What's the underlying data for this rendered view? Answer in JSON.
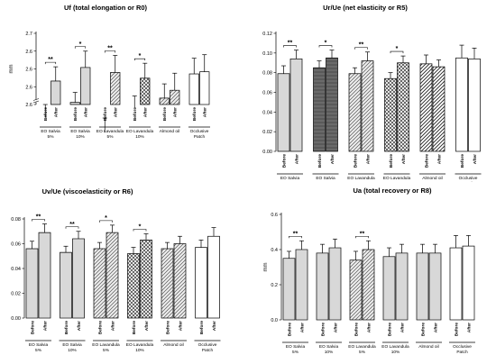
{
  "chart_data": [
    {
      "type": "bar",
      "title": "Uf (total elongation or R0)",
      "ylabel": "mm",
      "ylim": [
        2.6,
        2.7
      ],
      "yticks": [
        "2.6",
        "2.6",
        "2.6",
        "2.6",
        "2.7"
      ],
      "axis_break": true,
      "groups": [
        "EO Salvia\n5%",
        "EO Salvia\n10%",
        "EO Lavandula\n5%",
        "EO Lavandula\n10%",
        "Almond oil",
        "Occlusive\nPatch"
      ],
      "bar_labels": [
        "Before",
        "After"
      ],
      "series": [
        {
          "name": "Before",
          "values": [
            2.582,
            2.603,
            2.561,
            2.596,
            2.609,
            2.643
          ],
          "errors": [
            0.018,
            0.014,
            0.02,
            0.016,
            0.02,
            0.022
          ]
        },
        {
          "name": "After",
          "values": [
            2.633,
            2.652,
            2.645,
            2.637,
            2.62,
            2.646
          ],
          "errors": [
            0.02,
            0.023,
            0.024,
            0.021,
            0.024,
            0.024
          ]
        }
      ],
      "significance": [
        "**",
        "*",
        "**",
        "*",
        "",
        ""
      ],
      "patterns": [
        "hlines",
        "hlines",
        "diag",
        "cross",
        "diag",
        "none"
      ]
    },
    {
      "type": "bar",
      "title": "Ur/Ue (net elasticity or R5)",
      "ylabel": "",
      "ylim": [
        0,
        0.12
      ],
      "yticks": [
        "0.00",
        "0.02",
        "0.04",
        "0.06",
        "0.08",
        "0.10",
        "0.12"
      ],
      "axis_break": false,
      "groups": [
        "EO Salvia\n5%",
        "EO Salvia\n10%",
        "EO Lavandula\n5%",
        "EO Lavandula\n10%",
        "Almond oil",
        "Occlusive\nPatch"
      ],
      "bar_labels": [
        "Before",
        "After"
      ],
      "series": [
        {
          "name": "Before",
          "values": [
            0.079,
            0.085,
            0.079,
            0.074,
            0.089,
            0.095
          ],
          "errors": [
            0.008,
            0.007,
            0.006,
            0.006,
            0.009,
            0.013
          ]
        },
        {
          "name": "After",
          "values": [
            0.094,
            0.095,
            0.092,
            0.09,
            0.086,
            0.094
          ],
          "errors": [
            0.009,
            0.008,
            0.009,
            0.007,
            0.007,
            0.011
          ]
        }
      ],
      "significance": [
        "**",
        "*",
        "**",
        "*",
        "",
        ""
      ],
      "patterns": [
        "hlines",
        "dark",
        "diag",
        "cross",
        "zigzag",
        "none"
      ]
    },
    {
      "type": "bar",
      "title": "Uv/Ue (viscoelasticity or R6)",
      "ylabel": "",
      "ylim": [
        0,
        0.08
      ],
      "yticks": [
        "0.00",
        "0.02",
        "0.04",
        "0.06",
        "0.08"
      ],
      "axis_break": false,
      "groups": [
        "EO Salvia\n5%",
        "EO Salvia\n10%",
        "EO Lavandula\n5%",
        "EO Lavandula\n10%",
        "Almond oil",
        "Occlusive\nPatch"
      ],
      "bar_labels": [
        "Before",
        "After"
      ],
      "series": [
        {
          "name": "Before",
          "values": [
            0.056,
            0.053,
            0.056,
            0.052,
            0.056,
            0.057
          ],
          "errors": [
            0.006,
            0.005,
            0.005,
            0.005,
            0.005,
            0.006
          ]
        },
        {
          "name": "After",
          "values": [
            0.069,
            0.064,
            0.069,
            0.063,
            0.06,
            0.066
          ],
          "errors": [
            0.007,
            0.006,
            0.006,
            0.005,
            0.006,
            0.007
          ]
        }
      ],
      "significance": [
        "**",
        "**",
        "*",
        "*",
        "",
        ""
      ],
      "patterns": [
        "hlines",
        "hlines",
        "diag",
        "cross",
        "diag",
        "none"
      ]
    },
    {
      "type": "bar",
      "title": "Ua (total recovery or R8)",
      "ylabel": "mm",
      "ylim": [
        0,
        0.6
      ],
      "yticks": [
        "0.0",
        "0.2",
        "0.4",
        "0.6"
      ],
      "axis_break": false,
      "groups": [
        "EO Salvia\n5%",
        "EO Salvia\n10%",
        "EO Lavandula\n5%",
        "EO Lavandula\n10%",
        "Almond oil",
        "Occlusive\nPatch"
      ],
      "bar_labels": [
        "Before",
        "After"
      ],
      "series": [
        {
          "name": "Before",
          "values": [
            0.35,
            0.38,
            0.34,
            0.36,
            0.38,
            0.41
          ],
          "errors": [
            0.04,
            0.05,
            0.05,
            0.05,
            0.05,
            0.07
          ]
        },
        {
          "name": "After",
          "values": [
            0.4,
            0.41,
            0.4,
            0.38,
            0.38,
            0.42
          ],
          "errors": [
            0.05,
            0.05,
            0.05,
            0.05,
            0.05,
            0.06
          ]
        }
      ],
      "significance": [
        "**",
        "",
        "**",
        "",
        "",
        ""
      ],
      "patterns": [
        "hlines",
        "hlines",
        "diag",
        "hlines",
        "hlines",
        "none"
      ]
    }
  ]
}
